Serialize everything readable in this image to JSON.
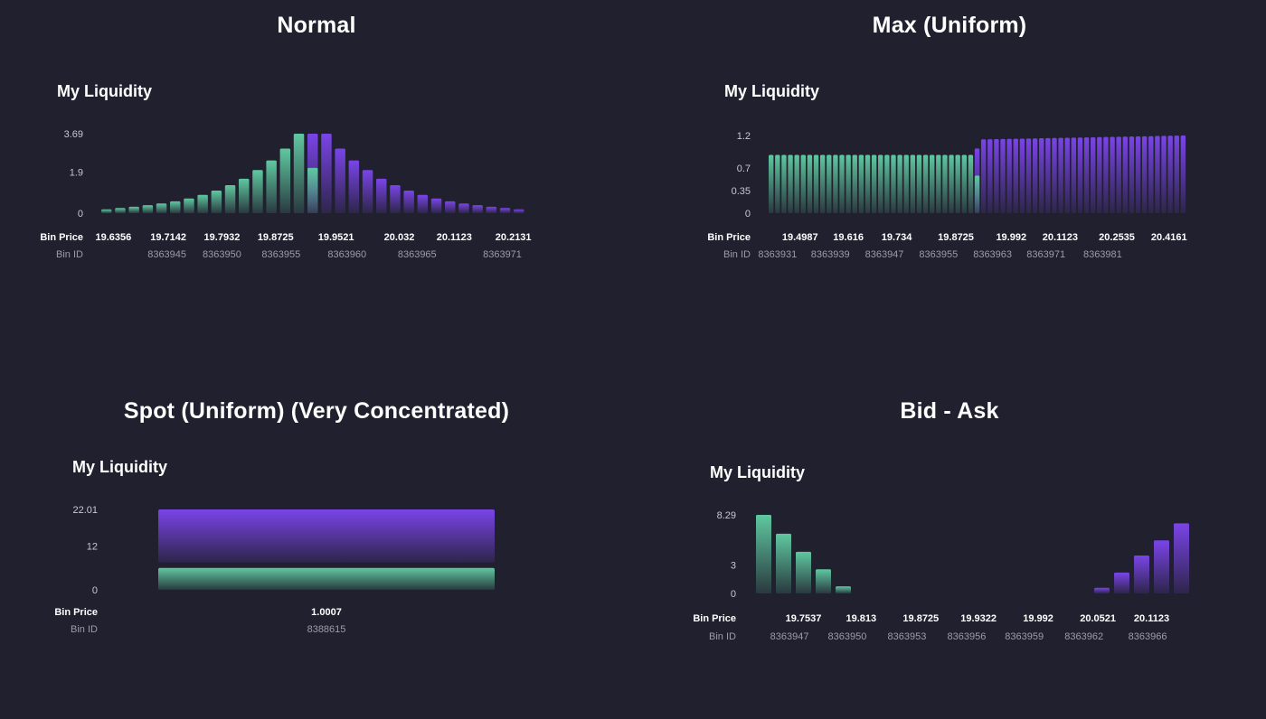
{
  "colors": {
    "background": "#20202e",
    "green": "#5fc8a0",
    "purple": "#7a44e8"
  },
  "row_labels": {
    "price": "Bin Price",
    "id": "Bin ID"
  },
  "chart_data": [
    {
      "panel_title": "Normal",
      "heading": "My Liquidity",
      "type": "bar",
      "yticks": [
        "3.69",
        "1.9",
        "0"
      ],
      "ytick_values": [
        3.69,
        1.9,
        0
      ],
      "ylim": [
        0,
        3.69
      ],
      "bins": [
        {
          "v": 0.18,
          "c": "green"
        },
        {
          "v": 0.24,
          "c": "green"
        },
        {
          "v": 0.3,
          "c": "green"
        },
        {
          "v": 0.37,
          "c": "green"
        },
        {
          "v": 0.45,
          "c": "green"
        },
        {
          "v": 0.55,
          "c": "green"
        },
        {
          "v": 0.68,
          "c": "green"
        },
        {
          "v": 0.85,
          "c": "green"
        },
        {
          "v": 1.05,
          "c": "green"
        },
        {
          "v": 1.3,
          "c": "green"
        },
        {
          "v": 1.6,
          "c": "green"
        },
        {
          "v": 2.0,
          "c": "green"
        },
        {
          "v": 2.45,
          "c": "green"
        },
        {
          "v": 3.0,
          "c": "green"
        },
        {
          "v": 3.69,
          "c": "green"
        },
        {
          "v": 3.69,
          "c": "split",
          "low": 2.1
        },
        {
          "v": 3.69,
          "c": "purple"
        },
        {
          "v": 3.0,
          "c": "purple"
        },
        {
          "v": 2.45,
          "c": "purple"
        },
        {
          "v": 2.0,
          "c": "purple"
        },
        {
          "v": 1.6,
          "c": "purple"
        },
        {
          "v": 1.3,
          "c": "purple"
        },
        {
          "v": 1.05,
          "c": "purple"
        },
        {
          "v": 0.85,
          "c": "purple"
        },
        {
          "v": 0.68,
          "c": "purple"
        },
        {
          "v": 0.55,
          "c": "purple"
        },
        {
          "v": 0.45,
          "c": "purple"
        },
        {
          "v": 0.37,
          "c": "purple"
        },
        {
          "v": 0.3,
          "c": "purple"
        },
        {
          "v": 0.24,
          "c": "purple"
        },
        {
          "v": 0.18,
          "c": "purple"
        }
      ],
      "price_labels": [
        {
          "t": "19.6356",
          "i": 0.5
        },
        {
          "t": "19.7142",
          "i": 4.5
        },
        {
          "t": "19.7932",
          "i": 8.4
        },
        {
          "t": "19.8725",
          "i": 12.3
        },
        {
          "t": "19.9521",
          "i": 16.7
        },
        {
          "t": "20.032",
          "i": 21.3
        },
        {
          "t": "20.1123",
          "i": 25.3
        },
        {
          "t": "20.2131",
          "i": 29.6
        }
      ],
      "id_labels": [
        {
          "t": "8363945",
          "i": 4.4
        },
        {
          "t": "8363950",
          "i": 8.4
        },
        {
          "t": "8363955",
          "i": 12.7
        },
        {
          "t": "8363960",
          "i": 17.5
        },
        {
          "t": "8363965",
          "i": 22.6
        },
        {
          "t": "8363971",
          "i": 28.8
        }
      ]
    },
    {
      "panel_title": "Max (Uniform)",
      "heading": "My Liquidity",
      "type": "bar",
      "yticks": [
        "1.2",
        "0.7",
        "0.35",
        "0"
      ],
      "ytick_values": [
        1.2,
        0.7,
        0.35,
        0
      ],
      "ylim": [
        0,
        1.2
      ],
      "green_bins": 32,
      "green_value": 0.9,
      "split_value": 1.0,
      "split_low": 0.58,
      "purple_bins": 32,
      "purple_start": 1.14,
      "purple_end": 1.2,
      "price_labels": [
        {
          "t": "19.4987",
          "i": 4.5
        },
        {
          "t": "19.616",
          "i": 12.0
        },
        {
          "t": "19.734",
          "i": 19.5
        },
        {
          "t": "19.8725",
          "i": 28.7
        },
        {
          "t": "19.992",
          "i": 37.3
        },
        {
          "t": "20.1123",
          "i": 44.9
        },
        {
          "t": "20.2535",
          "i": 53.7
        },
        {
          "t": "20.4161",
          "i": 61.8
        }
      ],
      "id_labels": [
        {
          "t": "8363931",
          "i": 1.0
        },
        {
          "t": "8363939",
          "i": 9.2
        },
        {
          "t": "8363947",
          "i": 17.6
        },
        {
          "t": "8363955",
          "i": 26.0
        },
        {
          "t": "8363963",
          "i": 34.4
        },
        {
          "t": "8363971",
          "i": 42.7
        },
        {
          "t": "8363981",
          "i": 51.5
        }
      ]
    },
    {
      "panel_title": "Spot (Uniform) (Very Concentrated)",
      "heading": "My Liquidity",
      "type": "bar",
      "yticks": [
        "22.01",
        "12",
        "0"
      ],
      "ytick_values": [
        22.01,
        12,
        0
      ],
      "ylim": [
        0,
        22.01
      ],
      "green_value": 6.0,
      "total_value": 22.01,
      "price_label": "1.0007",
      "id_label": "8388615"
    },
    {
      "panel_title": "Bid - Ask",
      "heading": "My Liquidity",
      "type": "bar",
      "yticks": [
        "8.29",
        "3",
        "0"
      ],
      "ytick_values": [
        8.29,
        3,
        0
      ],
      "ylim": [
        0,
        8.29
      ],
      "bins": [
        {
          "v": 8.29,
          "c": "green"
        },
        {
          "v": 6.3,
          "c": "green"
        },
        {
          "v": 4.4,
          "c": "green"
        },
        {
          "v": 2.55,
          "c": "green"
        },
        {
          "v": 0.75,
          "c": "green"
        },
        {
          "v": 0,
          "c": "none"
        },
        {
          "v": 0,
          "c": "none"
        },
        {
          "v": 0,
          "c": "none"
        },
        {
          "v": 0,
          "c": "none"
        },
        {
          "v": 0,
          "c": "none"
        },
        {
          "v": 0,
          "c": "none"
        },
        {
          "v": 0,
          "c": "none"
        },
        {
          "v": 0,
          "c": "none"
        },
        {
          "v": 0,
          "c": "none"
        },
        {
          "v": 0,
          "c": "none"
        },
        {
          "v": 0,
          "c": "none"
        },
        {
          "v": 0,
          "c": "none"
        },
        {
          "v": 0.6,
          "c": "purple"
        },
        {
          "v": 2.2,
          "c": "purple"
        },
        {
          "v": 4.0,
          "c": "purple"
        },
        {
          "v": 5.6,
          "c": "purple"
        },
        {
          "v": 7.4,
          "c": "purple"
        }
      ],
      "price_labels": [
        {
          "t": "19.7537",
          "i": 2.0
        },
        {
          "t": "19.813",
          "i": 4.9
        },
        {
          "t": "19.8725",
          "i": 7.9
        },
        {
          "t": "19.9322",
          "i": 10.8
        },
        {
          "t": "19.992",
          "i": 13.8
        },
        {
          "t": "20.0521",
          "i": 16.8
        },
        {
          "t": "20.1123",
          "i": 19.5
        }
      ],
      "id_labels": [
        {
          "t": "8363947",
          "i": 1.3
        },
        {
          "t": "8363950",
          "i": 4.2
        },
        {
          "t": "8363953",
          "i": 7.2
        },
        {
          "t": "8363956",
          "i": 10.2
        },
        {
          "t": "8363959",
          "i": 13.1
        },
        {
          "t": "8363962",
          "i": 16.1
        },
        {
          "t": "8363966",
          "i": 19.3
        }
      ]
    }
  ]
}
